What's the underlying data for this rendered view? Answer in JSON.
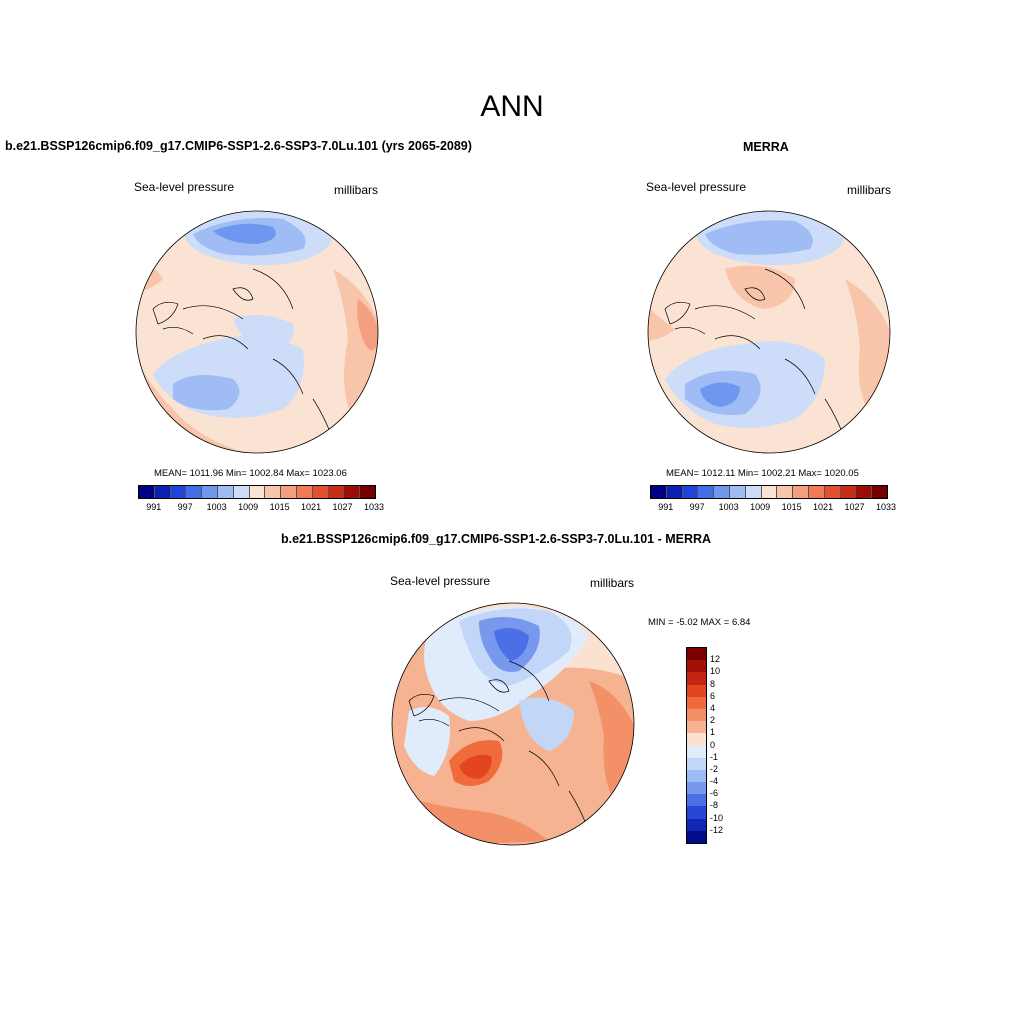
{
  "title": "ANN",
  "panels": [
    {
      "title": "b.e21.BSSP126cmip6.f09_g17.CMIP6-SSP1-2.6-SSP3-7.0Lu.101 (yrs 2065-2089)",
      "field": "Sea-level pressure",
      "units": "millibars",
      "stats": "MEAN= 1011.96  Min= 1002.84  Max= 1023.06"
    },
    {
      "title": "MERRA",
      "field": "Sea-level pressure",
      "units": "millibars",
      "stats": "MEAN= 1012.11  Min= 1002.21  Max= 1020.05"
    },
    {
      "title": "b.e21.BSSP126cmip6.f09_g17.CMIP6-SSP1-2.6-SSP3-7.0Lu.101 - MERRA",
      "field": "Sea-level pressure",
      "units": "millibars",
      "stats": "MIN =  -5.02 MAX =   6.84"
    }
  ],
  "colorbar_abs": {
    "labels": [
      "991",
      "997",
      "1003",
      "1009",
      "1015",
      "1021",
      "1027",
      "1033"
    ],
    "colors": [
      "#000080",
      "#0b1fb0",
      "#1f44d8",
      "#3f6ee8",
      "#6e98f0",
      "#9fbcf5",
      "#cddcf8",
      "#fbe3d3",
      "#f8c4aa",
      "#f4a080",
      "#ef7a56",
      "#e2502f",
      "#c72c15",
      "#9a0e05",
      "#740000"
    ]
  },
  "colorbar_diff": {
    "labels": [
      "12",
      "10",
      "8",
      "6",
      "4",
      "2",
      "1",
      "0",
      "-1",
      "-2",
      "-4",
      "-6",
      "-8",
      "-10",
      "-12"
    ],
    "colors": [
      "#7a0000",
      "#a01005",
      "#c42510",
      "#e24520",
      "#f06a3c",
      "#f49068",
      "#f6b392",
      "#fbe1cf",
      "#e0ecfb",
      "#c2d6f7",
      "#9dbcf3",
      "#7898ee",
      "#4c6ee6",
      "#2748d6",
      "#1128b3",
      "#000c8c"
    ]
  }
}
